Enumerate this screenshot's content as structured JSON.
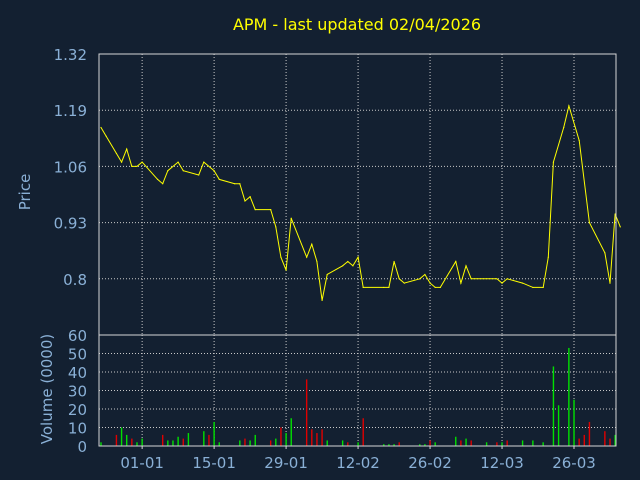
{
  "colors": {
    "background": "#132031",
    "frame": "#d6d6d6",
    "grid": "#c9c9c9",
    "title": "#ffff00",
    "axis_text": "#8ab0d6",
    "price_line": "#ffff00",
    "volume_up": "#00e000",
    "volume_down": "#e00000"
  },
  "chart_data": [
    {
      "type": "line",
      "title": "APM - last updated 02/04/2026",
      "ylabel": "Price",
      "ylim": [
        0.67,
        1.32
      ],
      "ytick_labels": [
        "1.32",
        "1.19",
        "1.06",
        "0.93",
        "0.8"
      ],
      "yticks": [
        1.32,
        1.19,
        1.06,
        0.93,
        0.8
      ],
      "grid": true,
      "x_range": [
        "2025-12-24",
        "2026-04-02"
      ],
      "xtick_labels": [
        "01-01",
        "15-01",
        "29-01",
        "12-02",
        "26-02",
        "12-03",
        "26-03"
      ],
      "xticks": [
        "2026-01-01",
        "2026-01-15",
        "2026-01-29",
        "2026-02-12",
        "2026-02-26",
        "2026-03-12",
        "2026-03-26"
      ],
      "series": [
        {
          "values": [
            [
              "2025-12-24",
              1.15
            ],
            [
              "2025-12-25",
              1.13
            ],
            [
              "2025-12-27",
              1.09
            ],
            [
              "2025-12-28",
              1.07
            ],
            [
              "2025-12-29",
              1.1
            ],
            [
              "2025-12-30",
              1.06
            ],
            [
              "2025-12-31",
              1.06
            ],
            [
              "2026-01-01",
              1.07
            ],
            [
              "2026-01-04",
              1.03
            ],
            [
              "2026-01-05",
              1.02
            ],
            [
              "2026-01-06",
              1.05
            ],
            [
              "2026-01-08",
              1.07
            ],
            [
              "2026-01-09",
              1.05
            ],
            [
              "2026-01-12",
              1.04
            ],
            [
              "2026-01-13",
              1.07
            ],
            [
              "2026-01-15",
              1.05
            ],
            [
              "2026-01-16",
              1.03
            ],
            [
              "2026-01-19",
              1.02
            ],
            [
              "2026-01-20",
              1.02
            ],
            [
              "2026-01-21",
              0.98
            ],
            [
              "2026-01-22",
              0.99
            ],
            [
              "2026-01-23",
              0.96
            ],
            [
              "2026-01-26",
              0.96
            ],
            [
              "2026-01-27",
              0.92
            ],
            [
              "2026-01-28",
              0.85
            ],
            [
              "2026-01-29",
              0.82
            ],
            [
              "2026-01-30",
              0.94
            ],
            [
              "2026-02-02",
              0.85
            ],
            [
              "2026-02-03",
              0.88
            ],
            [
              "2026-02-04",
              0.84
            ],
            [
              "2026-02-05",
              0.75
            ],
            [
              "2026-02-06",
              0.81
            ],
            [
              "2026-02-09",
              0.83
            ],
            [
              "2026-02-10",
              0.84
            ],
            [
              "2026-02-11",
              0.83
            ],
            [
              "2026-02-12",
              0.85
            ],
            [
              "2026-02-13",
              0.78
            ],
            [
              "2026-02-17",
              0.78
            ],
            [
              "2026-02-18",
              0.78
            ],
            [
              "2026-02-19",
              0.84
            ],
            [
              "2026-02-20",
              0.8
            ],
            [
              "2026-02-21",
              0.79
            ],
            [
              "2026-02-24",
              0.8
            ],
            [
              "2026-02-25",
              0.81
            ],
            [
              "2026-02-26",
              0.79
            ],
            [
              "2026-02-27",
              0.78
            ],
            [
              "2026-02-28",
              0.78
            ],
            [
              "2026-03-03",
              0.84
            ],
            [
              "2026-03-04",
              0.79
            ],
            [
              "2026-03-05",
              0.83
            ],
            [
              "2026-03-06",
              0.8
            ],
            [
              "2026-03-11",
              0.8
            ],
            [
              "2026-03-12",
              0.79
            ],
            [
              "2026-03-13",
              0.8
            ],
            [
              "2026-03-16",
              0.79
            ],
            [
              "2026-03-18",
              0.78
            ],
            [
              "2026-03-20",
              0.78
            ],
            [
              "2026-03-21",
              0.85
            ],
            [
              "2026-03-22",
              1.07
            ],
            [
              "2026-03-24",
              1.15
            ],
            [
              "2026-03-25",
              1.2
            ],
            [
              "2026-03-27",
              1.12
            ],
            [
              "2026-03-29",
              0.93
            ],
            [
              "2026-04-01",
              0.86
            ],
            [
              "2026-04-02",
              0.79
            ],
            [
              "2026-04-03",
              0.95
            ],
            [
              "2026-04-04",
              0.92
            ]
          ]
        }
      ]
    },
    {
      "type": "bar",
      "ylabel": "Volume (0000)",
      "ylim": [
        0,
        60
      ],
      "ytick_labels": [
        "60",
        "50",
        "40",
        "30",
        "20",
        "10",
        "0"
      ],
      "yticks": [
        60,
        50,
        40,
        30,
        20,
        10,
        0
      ],
      "grid": true,
      "xtick_labels": [
        "01-01",
        "15-01",
        "29-01",
        "12-02",
        "26-02",
        "12-03",
        "26-03"
      ],
      "xticks": [
        "2026-01-01",
        "2026-01-15",
        "2026-01-29",
        "2026-02-12",
        "2026-02-26",
        "2026-03-12",
        "2026-03-26"
      ],
      "series": [
        {
          "values": [
            [
              "2025-12-24",
              2,
              "up"
            ],
            [
              "2025-12-27",
              6,
              "down"
            ],
            [
              "2025-12-28",
              10,
              "up"
            ],
            [
              "2025-12-29",
              6,
              "up"
            ],
            [
              "2025-12-30",
              4,
              "down"
            ],
            [
              "2025-12-31",
              2,
              "up"
            ],
            [
              "2026-01-01",
              4,
              "up"
            ],
            [
              "2026-01-05",
              6,
              "down"
            ],
            [
              "2026-01-06",
              3,
              "up"
            ],
            [
              "2026-01-07",
              3,
              "up"
            ],
            [
              "2026-01-08",
              5,
              "up"
            ],
            [
              "2026-01-09",
              4,
              "down"
            ],
            [
              "2026-01-10",
              7,
              "up"
            ],
            [
              "2026-01-13",
              8,
              "up"
            ],
            [
              "2026-01-14",
              6,
              "down"
            ],
            [
              "2026-01-15",
              13,
              "up"
            ],
            [
              "2026-01-16",
              2,
              "up"
            ],
            [
              "2026-01-20",
              3,
              "up"
            ],
            [
              "2026-01-21",
              4,
              "down"
            ],
            [
              "2026-01-22",
              3,
              "up"
            ],
            [
              "2026-01-23",
              6,
              "up"
            ],
            [
              "2026-01-26",
              3,
              "down"
            ],
            [
              "2026-01-27",
              4,
              "up"
            ],
            [
              "2026-01-28",
              10,
              "down"
            ],
            [
              "2026-01-29",
              7,
              "up"
            ],
            [
              "2026-01-30",
              15,
              "up"
            ],
            [
              "2026-02-02",
              36,
              "down"
            ],
            [
              "2026-02-03",
              9,
              "down"
            ],
            [
              "2026-02-04",
              7,
              "down"
            ],
            [
              "2026-02-05",
              9,
              "down"
            ],
            [
              "2026-02-06",
              3,
              "up"
            ],
            [
              "2026-02-09",
              3,
              "up"
            ],
            [
              "2026-02-10",
              2,
              "down"
            ],
            [
              "2026-02-12",
              2,
              "up"
            ],
            [
              "2026-02-13",
              15,
              "down"
            ],
            [
              "2026-02-17",
              1,
              "up"
            ],
            [
              "2026-02-18",
              1,
              "up"
            ],
            [
              "2026-02-19",
              1,
              "up"
            ],
            [
              "2026-02-20",
              2,
              "down"
            ],
            [
              "2026-02-24",
              1,
              "up"
            ],
            [
              "2026-02-25",
              1,
              "up"
            ],
            [
              "2026-02-26",
              3,
              "down"
            ],
            [
              "2026-02-27",
              2,
              "up"
            ],
            [
              "2026-03-03",
              5,
              "up"
            ],
            [
              "2026-03-04",
              3,
              "down"
            ],
            [
              "2026-03-05",
              4,
              "up"
            ],
            [
              "2026-03-06",
              3,
              "down"
            ],
            [
              "2026-03-09",
              2,
              "up"
            ],
            [
              "2026-03-11",
              2,
              "down"
            ],
            [
              "2026-03-12",
              2,
              "up"
            ],
            [
              "2026-03-13",
              3,
              "down"
            ],
            [
              "2026-03-16",
              3,
              "up"
            ],
            [
              "2026-03-18",
              3,
              "up"
            ],
            [
              "2026-03-20",
              2,
              "up"
            ],
            [
              "2026-03-22",
              43,
              "up"
            ],
            [
              "2026-03-23",
              22,
              "up"
            ],
            [
              "2026-03-25",
              53,
              "up"
            ],
            [
              "2026-03-26",
              25,
              "up"
            ],
            [
              "2026-03-27",
              4,
              "down"
            ],
            [
              "2026-03-28",
              6,
              "down"
            ],
            [
              "2026-03-29",
              13,
              "down"
            ],
            [
              "2026-04-01",
              8,
              "down"
            ],
            [
              "2026-04-02",
              4,
              "down"
            ],
            [
              "2026-04-03",
              6,
              "up"
            ]
          ]
        }
      ]
    }
  ]
}
